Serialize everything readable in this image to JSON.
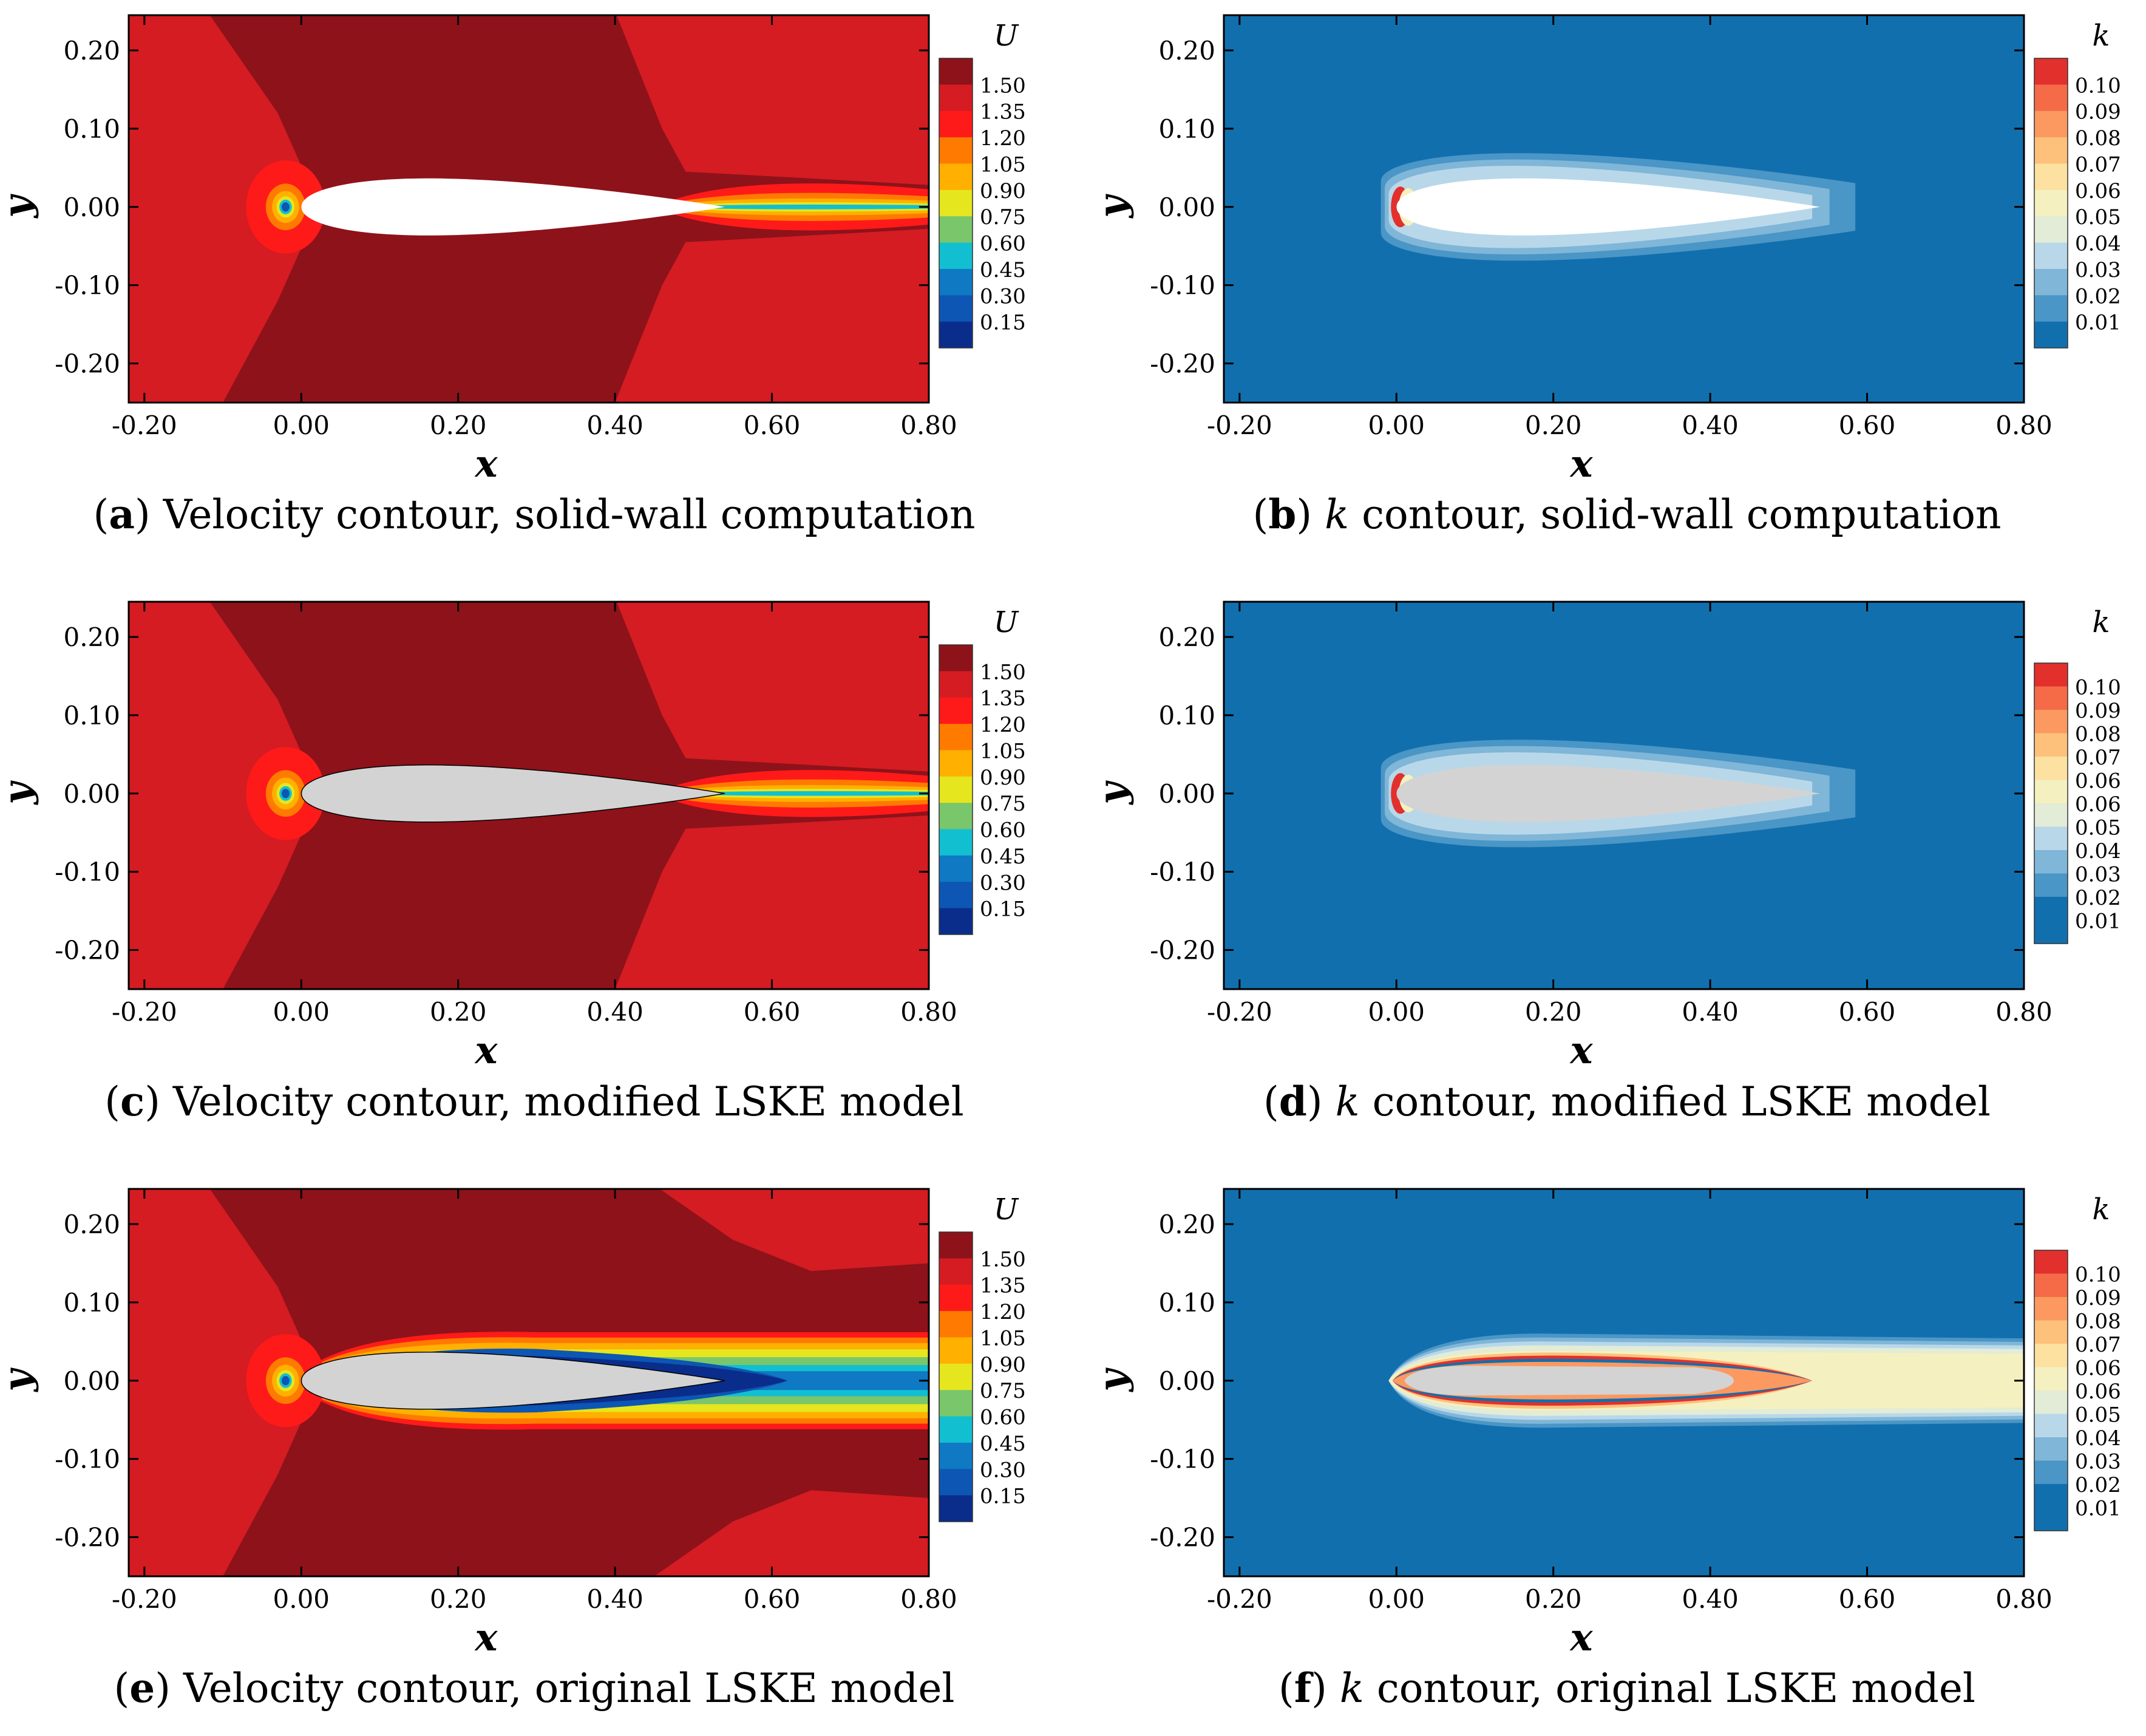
{
  "colors": {
    "u_levels": [
      "#0d2a5e",
      "#0a2d8c",
      "#0d56b3",
      "#0f79c4",
      "#12bfd1",
      "#7ac66b",
      "#e6e61e",
      "#ffb000",
      "#ff7a00",
      "#ff1a1a",
      "#d41c22",
      "#8e121a"
    ],
    "k_levels": [
      "#126fae",
      "#4a96c6",
      "#80b6d8",
      "#b8d8ea",
      "#e2ecd6",
      "#f5f0c0",
      "#fde1a0",
      "#fdc17c",
      "#fc9960",
      "#f56b47",
      "#e2302d"
    ],
    "airfoil_solid": "#ffffff",
    "airfoil_porous": "#d3d3d3",
    "outline": "#000000"
  },
  "chart_data": [
    {
      "id": "a",
      "type": "contour",
      "field": "U",
      "caption": {
        "letter": "a",
        "text": "Velocity contour, solid-wall computation"
      },
      "xlabel": "x",
      "ylabel": "y",
      "xlim": [
        -0.22,
        0.8
      ],
      "ylim": [
        -0.25,
        0.245
      ],
      "xticks": [
        "-0.20",
        "0.00",
        "0.20",
        "0.40",
        "0.60",
        "0.80"
      ],
      "xtick_values": [
        -0.2,
        0.0,
        0.2,
        0.4,
        0.6,
        0.8
      ],
      "yticks": [
        "0.20",
        "0.10",
        "0.00",
        "-0.10",
        "-0.20"
      ],
      "ytick_values": [
        0.2,
        0.1,
        0.0,
        -0.1,
        -0.2
      ],
      "legend": {
        "title": "U",
        "levels": [
          "1.50",
          "1.35",
          "1.20",
          "1.05",
          "0.90",
          "0.75",
          "0.60",
          "0.45",
          "0.30",
          "0.15"
        ]
      },
      "airfoil": "solid",
      "wake": "thin"
    },
    {
      "id": "b",
      "type": "contour",
      "field": "k",
      "caption": {
        "letter": "b",
        "text": "contour, solid-wall computation",
        "symbol": "k"
      },
      "xlabel": "x",
      "ylabel": "y",
      "xlim": [
        -0.22,
        0.8
      ],
      "ylim": [
        -0.25,
        0.245
      ],
      "xticks": [
        "-0.20",
        "0.00",
        "0.20",
        "0.40",
        "0.60",
        "0.80"
      ],
      "xtick_values": [
        -0.2,
        0.0,
        0.2,
        0.4,
        0.6,
        0.8
      ],
      "yticks": [
        "0.20",
        "0.10",
        "0.00",
        "-0.10",
        "-0.20"
      ],
      "ytick_values": [
        0.2,
        0.1,
        0.0,
        -0.1,
        -0.2
      ],
      "legend": {
        "title": "k",
        "levels": [
          "0.10",
          "0.09",
          "0.08",
          "0.07",
          "0.06",
          "0.05",
          "0.04",
          "0.03",
          "0.02",
          "0.01"
        ]
      },
      "airfoil": "solid",
      "wake": "thin"
    },
    {
      "id": "c",
      "type": "contour",
      "field": "U",
      "caption": {
        "letter": "c",
        "text": "Velocity contour, modified LSKE model"
      },
      "xlabel": "x",
      "ylabel": "y",
      "xlim": [
        -0.22,
        0.8
      ],
      "ylim": [
        -0.25,
        0.245
      ],
      "xticks": [
        "-0.20",
        "0.00",
        "0.20",
        "0.40",
        "0.60",
        "0.80"
      ],
      "xtick_values": [
        -0.2,
        0.0,
        0.2,
        0.4,
        0.6,
        0.8
      ],
      "yticks": [
        "0.20",
        "0.10",
        "0.00",
        "-0.10",
        "-0.20"
      ],
      "ytick_values": [
        0.2,
        0.1,
        0.0,
        -0.1,
        -0.2
      ],
      "legend": {
        "title": "U",
        "levels": [
          "1.50",
          "1.35",
          "1.20",
          "1.05",
          "0.90",
          "0.75",
          "0.60",
          "0.45",
          "0.30",
          "0.15"
        ]
      },
      "airfoil": "porous",
      "wake": "thin"
    },
    {
      "id": "d",
      "type": "contour",
      "field": "k",
      "caption": {
        "letter": "d",
        "text": "contour, modified LSKE model",
        "symbol": "k"
      },
      "xlabel": "x",
      "ylabel": "y",
      "xlim": [
        -0.22,
        0.8
      ],
      "ylim": [
        -0.25,
        0.245
      ],
      "xticks": [
        "-0.20",
        "0.00",
        "0.20",
        "0.40",
        "0.60",
        "0.80"
      ],
      "xtick_values": [
        -0.2,
        0.0,
        0.2,
        0.4,
        0.6,
        0.8
      ],
      "yticks": [
        "0.20",
        "0.10",
        "0.00",
        "-0.10",
        "-0.20"
      ],
      "ytick_values": [
        0.2,
        0.1,
        0.0,
        -0.1,
        -0.2
      ],
      "legend": {
        "title": "k",
        "levels": [
          "0.10",
          "0.09",
          "0.08",
          "0.07",
          "0.06",
          "0.06",
          "0.05",
          "0.04",
          "0.03",
          "0.02",
          "0.01"
        ]
      },
      "airfoil": "porous",
      "wake": "thin"
    },
    {
      "id": "e",
      "type": "contour",
      "field": "U",
      "caption": {
        "letter": "e",
        "text": "Velocity contour, original LSKE model"
      },
      "xlabel": "x",
      "ylabel": "y",
      "xlim": [
        -0.22,
        0.8
      ],
      "ylim": [
        -0.25,
        0.245
      ],
      "xticks": [
        "-0.20",
        "0.00",
        "0.20",
        "0.40",
        "0.60",
        "0.80"
      ],
      "xtick_values": [
        -0.2,
        0.0,
        0.2,
        0.4,
        0.6,
        0.8
      ],
      "yticks": [
        "0.20",
        "0.10",
        "0.00",
        "-0.10",
        "-0.20"
      ],
      "ytick_values": [
        0.2,
        0.1,
        0.0,
        -0.1,
        -0.2
      ],
      "legend": {
        "title": "U",
        "levels": [
          "1.50",
          "1.35",
          "1.20",
          "1.05",
          "0.90",
          "0.75",
          "0.60",
          "0.45",
          "0.30",
          "0.15"
        ]
      },
      "airfoil": "porous",
      "wake": "wide"
    },
    {
      "id": "f",
      "type": "contour",
      "field": "k",
      "caption": {
        "letter": "f",
        "text": "contour, original LSKE model",
        "symbol": "k"
      },
      "xlabel": "x",
      "ylabel": "y",
      "xlim": [
        -0.22,
        0.8
      ],
      "ylim": [
        -0.25,
        0.245
      ],
      "xticks": [
        "-0.20",
        "0.00",
        "0.20",
        "0.40",
        "0.60",
        "0.80"
      ],
      "xtick_values": [
        -0.2,
        0.0,
        0.2,
        0.4,
        0.6,
        0.8
      ],
      "yticks": [
        "0.20",
        "0.10",
        "0.00",
        "-0.10",
        "-0.20"
      ],
      "ytick_values": [
        0.2,
        0.1,
        0.0,
        -0.1,
        -0.2
      ],
      "legend": {
        "title": "k",
        "levels": [
          "0.10",
          "0.09",
          "0.08",
          "0.07",
          "0.06",
          "0.06",
          "0.05",
          "0.04",
          "0.03",
          "0.02",
          "0.01"
        ]
      },
      "airfoil": "porous",
      "wake": "wide"
    }
  ]
}
